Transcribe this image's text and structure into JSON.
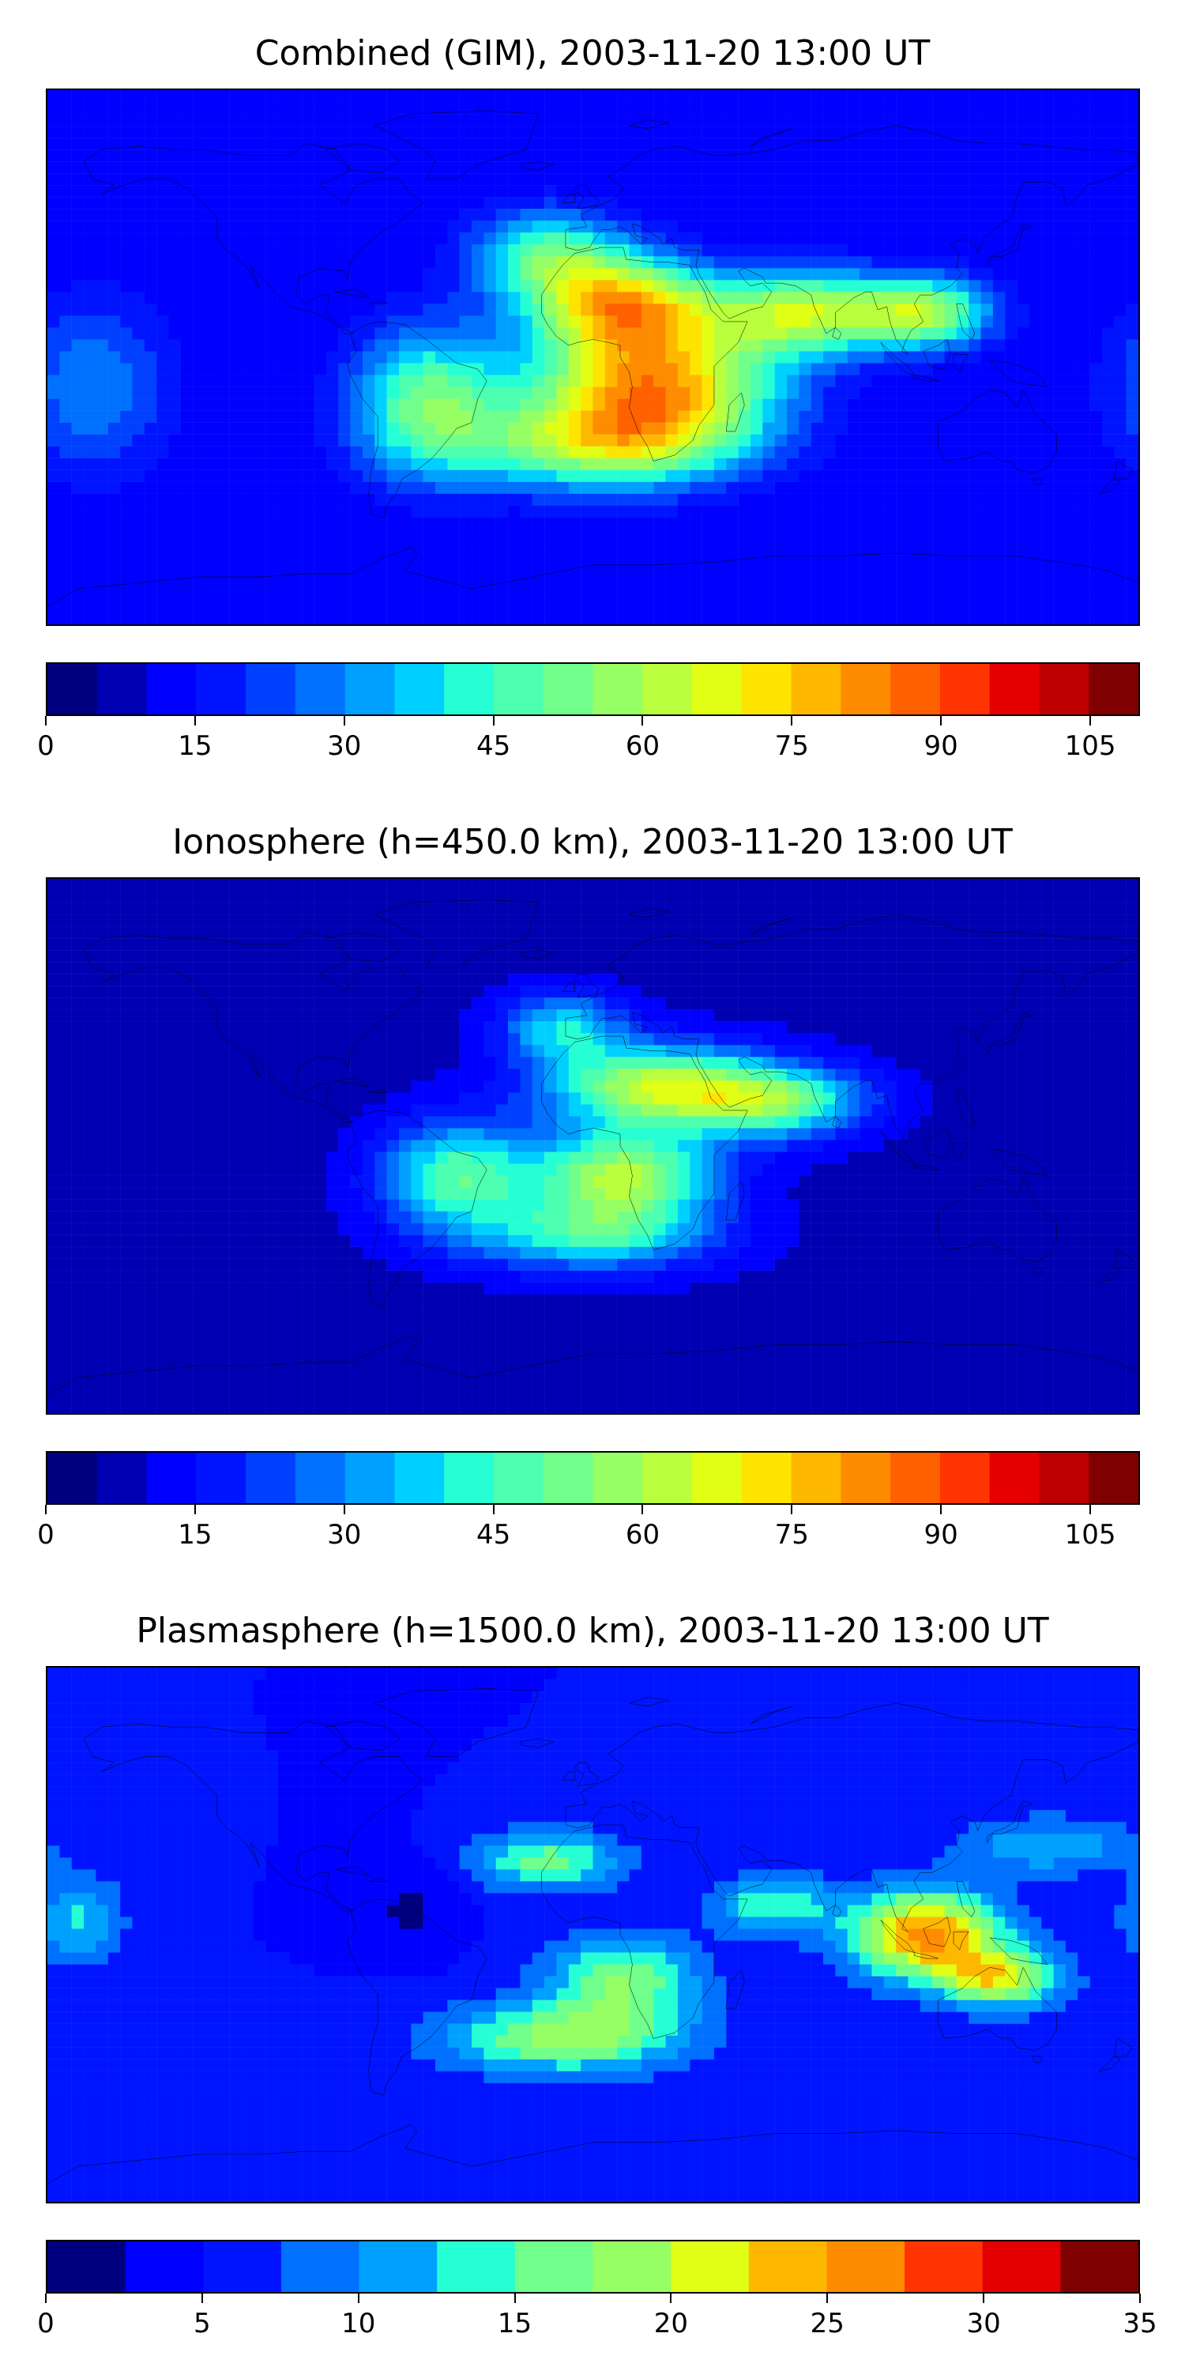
{
  "panels": [
    {
      "title": "Combined (GIM), 2003-11-20 13:00 UT",
      "colorbar": {
        "min": 0,
        "max": 110,
        "step": 5,
        "ticks": [
          "0",
          "15",
          "30",
          "45",
          "60",
          "75",
          "90",
          "105"
        ],
        "tick_values": [
          0,
          15,
          30,
          45,
          60,
          75,
          90,
          105
        ]
      },
      "field": {
        "background": 10,
        "blobs": [
          {
            "lon": 20,
            "lat": -10,
            "value": 78,
            "rlon": 40,
            "rlat": 22
          },
          {
            "lon": 10,
            "lat": 18,
            "value": 68,
            "rlon": 30,
            "rlat": 16
          },
          {
            "lon": 70,
            "lat": 15,
            "value": 60,
            "rlon": 30,
            "rlat": 14
          },
          {
            "lon": 110,
            "lat": 15,
            "value": 55,
            "rlon": 22,
            "rlat": 12
          },
          {
            "lon": -55,
            "lat": -15,
            "value": 50,
            "rlon": 25,
            "rlat": 25
          },
          {
            "lon": 0,
            "lat": -30,
            "value": 50,
            "rlon": 45,
            "rlat": 15
          },
          {
            "lon": -15,
            "lat": 35,
            "value": 45,
            "rlon": 25,
            "rlat": 15
          },
          {
            "lon": -165,
            "lat": -10,
            "value": 30,
            "rlon": 25,
            "rlat": 30
          }
        ]
      }
    },
    {
      "title": "Ionosphere  (h=450.0 km), 2003-11-20 13:00 UT",
      "colorbar": {
        "min": 0,
        "max": 110,
        "step": 5,
        "ticks": [
          "0",
          "15",
          "30",
          "45",
          "60",
          "75",
          "90",
          "105"
        ],
        "tick_values": [
          0,
          15,
          30,
          45,
          60,
          75,
          90,
          105
        ]
      },
      "field": {
        "background": 8,
        "blobs": [
          {
            "lon": 20,
            "lat": 20,
            "value": 60,
            "rlon": 35,
            "rlat": 14
          },
          {
            "lon": 10,
            "lat": -10,
            "value": 60,
            "rlon": 30,
            "rlat": 15
          },
          {
            "lon": 60,
            "lat": 15,
            "value": 50,
            "rlon": 30,
            "rlat": 12
          },
          {
            "lon": -45,
            "lat": -10,
            "value": 48,
            "rlon": 25,
            "rlat": 18
          },
          {
            "lon": 0,
            "lat": -30,
            "value": 42,
            "rlon": 40,
            "rlat": 12
          },
          {
            "lon": -10,
            "lat": 40,
            "value": 38,
            "rlon": 20,
            "rlat": 12
          }
        ]
      }
    },
    {
      "title": "Plasmasphere (h=1500.0 km), 2003-11-20 13:00 UT",
      "colorbar": {
        "min": 0,
        "max": 35,
        "step": 2.5,
        "ticks": [
          "0",
          "5",
          "10",
          "15",
          "20",
          "25",
          "30",
          "35"
        ],
        "tick_values": [
          0,
          5,
          10,
          15,
          20,
          25,
          30,
          35
        ]
      },
      "field": {
        "background": 5,
        "blobs": [
          {
            "lon": 110,
            "lat": 0,
            "value": 26,
            "rlon": 25,
            "rlat": 15
          },
          {
            "lon": 135,
            "lat": -15,
            "value": 20,
            "rlon": 20,
            "rlat": 10
          },
          {
            "lon": -10,
            "lat": -35,
            "value": 18,
            "rlon": 40,
            "rlat": 12
          },
          {
            "lon": 10,
            "lat": -15,
            "value": 17,
            "rlon": 25,
            "rlat": 15
          },
          {
            "lon": -15,
            "lat": 25,
            "value": 16,
            "rlon": 25,
            "rlat": 10
          },
          {
            "lon": 60,
            "lat": 10,
            "value": 15,
            "rlon": 20,
            "rlat": 10
          },
          {
            "lon": -170,
            "lat": 5,
            "value": 13,
            "rlon": 15,
            "rlat": 15
          },
          {
            "lon": 150,
            "lat": 30,
            "value": 12,
            "rlon": 30,
            "rlat": 10
          },
          {
            "lon": -60,
            "lat": 10,
            "value": 2,
            "rlon": 15,
            "rlat": 15
          }
        ]
      }
    }
  ],
  "colors": {
    "jet": [
      "#00007f",
      "#0000b2",
      "#0000ff",
      "#0014ff",
      "#0040ff",
      "#0070ff",
      "#00a0ff",
      "#00d0ff",
      "#26ffd4",
      "#4dffb0",
      "#70ff8a",
      "#96ff64",
      "#baff3d",
      "#e0ff14",
      "#ffe400",
      "#ffb800",
      "#ff8c00",
      "#ff6000",
      "#ff3400",
      "#e40000",
      "#bc0000",
      "#7f0000"
    ],
    "coast": "#000000"
  },
  "icons": {
    "coastlines": "world-coastline-outline"
  }
}
